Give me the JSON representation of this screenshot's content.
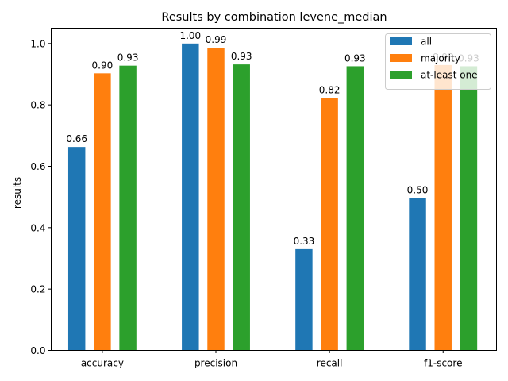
{
  "chart_data": {
    "type": "bar",
    "title": "Results by combination levene_median",
    "xlabel": "",
    "ylabel": "results",
    "categories": [
      "accuracy",
      "precision",
      "recall",
      "f1-score"
    ],
    "series": [
      {
        "name": "all",
        "color": "#1f77b4",
        "values": [
          0.663,
          1.0,
          0.33,
          0.497
        ],
        "labels": [
          "0.66",
          "1.00",
          "0.33",
          "0.50"
        ]
      },
      {
        "name": "majority",
        "color": "#ff7f0e",
        "values": [
          0.903,
          0.986,
          0.823,
          0.93
        ],
        "labels": [
          "0.90",
          "0.99",
          "0.82",
          "0.93"
        ]
      },
      {
        "name": "at-least one",
        "color": "#2ca02c",
        "values": [
          0.928,
          0.932,
          0.926,
          0.926
        ],
        "labels": [
          "0.93",
          "0.93",
          "0.93",
          "0.93"
        ]
      }
    ],
    "ylim": [
      0,
      1.05
    ],
    "yticks": [
      "0.0",
      "0.2",
      "0.4",
      "0.6",
      "0.8",
      "1.0"
    ],
    "legend_position": "top-right",
    "grid": false
  }
}
